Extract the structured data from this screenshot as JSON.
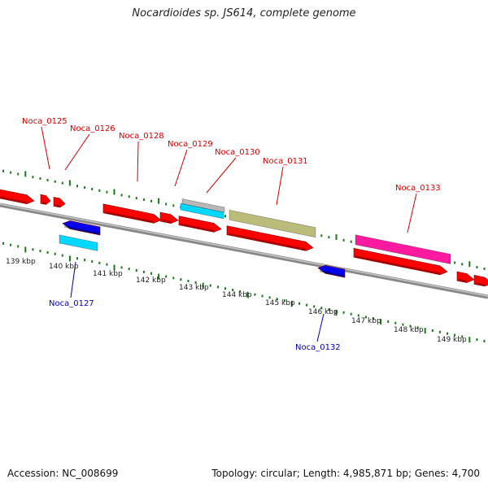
{
  "title": "Nocardioides sp. JS614, complete genome",
  "footer": {
    "accession": "Accession: NC_008699",
    "summary": "Topology: circular; Length: 4,985,871 bp; Genes: 4,700"
  },
  "colors": {
    "cds": "#ff0000",
    "cds_reverse": "#0000ee",
    "rna": "#00d8ff",
    "label_forward": "#d40000",
    "label_reverse": "#0000b0",
    "tick": "#1a7a1a",
    "backbone": "#888888"
  },
  "kbp_ticks": [
    "139 kbp",
    "140 kbp",
    "141 kbp",
    "142 kbp",
    "143 kbp",
    "144 kbp",
    "145 kbp",
    "146 kbp",
    "147 kbp",
    "148 kbp",
    "149 kbp"
  ],
  "gene_labels": [
    {
      "name": "Noca_0125",
      "strand": "forward"
    },
    {
      "name": "Noca_0126",
      "strand": "forward"
    },
    {
      "name": "Noca_0127",
      "strand": "reverse"
    },
    {
      "name": "Noca_0128",
      "strand": "forward"
    },
    {
      "name": "Noca_0129",
      "strand": "forward"
    },
    {
      "name": "Noca_0130",
      "strand": "forward"
    },
    {
      "name": "Noca_0131",
      "strand": "forward"
    },
    {
      "name": "Noca_0132",
      "strand": "reverse"
    },
    {
      "name": "Noca_0133",
      "strand": "forward"
    }
  ]
}
